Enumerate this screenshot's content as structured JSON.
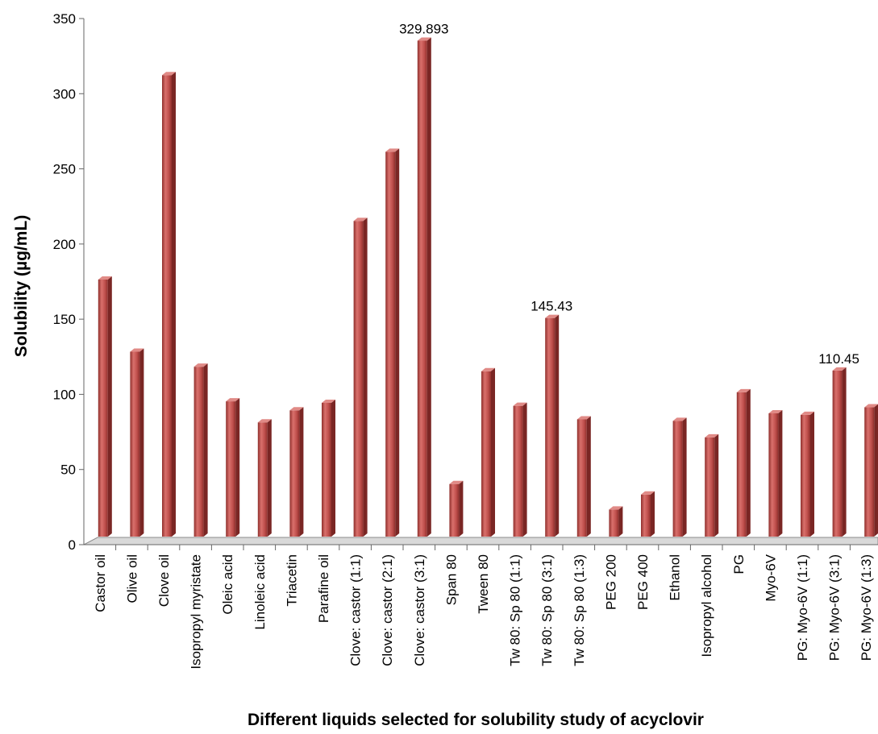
{
  "chart_data": {
    "type": "bar",
    "title": "",
    "xlabel": "Different liquids selected for solubility study of acyclovir",
    "ylabel": "Solubility (µg/mL)",
    "ylim": [
      0,
      350
    ],
    "yticks": [
      "0",
      "50",
      "100",
      "150",
      "200",
      "250",
      "300",
      "350"
    ],
    "grid": false,
    "legend": "none",
    "bar_color": "#c0504d",
    "categories": [
      "Castor oil",
      "Olive oil",
      "Clove oil",
      "Isopropyl myristate",
      "Oleic acid",
      "Linoleic acid",
      "Triacetin",
      "Parafine oil",
      "Clove: castor (1:1)",
      "Clove: castor (2:1)",
      "Clove: castor (3:1)",
      "Span 80",
      "Tween 80",
      "Tw 80: Sp 80 (1:1)",
      "Tw 80: Sp 80 (3:1)",
      "Tw 80: Sp 80 (1:3)",
      "PEG 200",
      "PEG 400",
      "Ethanol",
      "Isopropyl alcohol",
      "PG",
      "Myo-6V",
      "PG: Myo-6V (1:1)",
      "PG: Myo-6V (3:1)",
      "PG: Myo-6V (1:3)"
    ],
    "values": [
      171,
      123,
      307,
      113,
      90,
      76,
      84,
      89,
      210,
      256,
      329.893,
      35,
      110,
      87,
      145.43,
      78,
      18,
      28,
      77,
      66,
      96,
      82,
      81,
      110.45,
      86
    ],
    "data_labels": [
      {
        "index": 10,
        "text": "329.893"
      },
      {
        "index": 14,
        "text": "145.43"
      },
      {
        "index": 23,
        "text": "110.45"
      }
    ]
  }
}
